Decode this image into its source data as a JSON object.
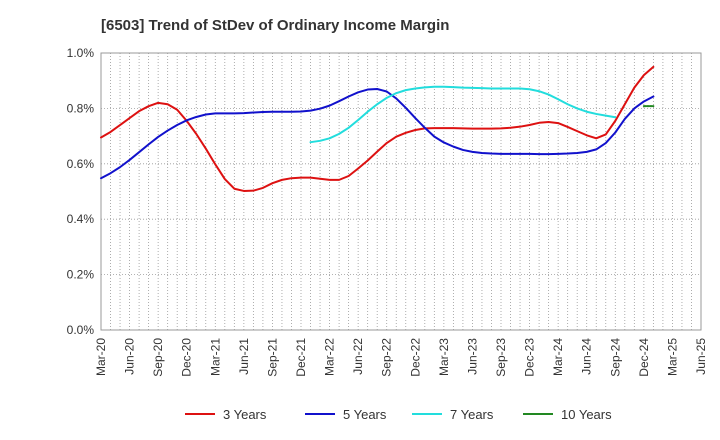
{
  "chart_data": {
    "type": "line",
    "title": "[6503]  Trend of StDev of Ordinary Income Margin",
    "xlabel": "",
    "ylabel": "",
    "ylim": [
      0,
      1.0
    ],
    "yticks": [
      "0.0%",
      "0.2%",
      "0.4%",
      "0.6%",
      "0.8%",
      "1.0%"
    ],
    "xticks": [
      "Mar-20",
      "Jun-20",
      "Sep-20",
      "Dec-20",
      "Mar-21",
      "Jun-21",
      "Sep-21",
      "Dec-21",
      "Mar-22",
      "Jun-22",
      "Sep-22",
      "Dec-22",
      "Mar-23",
      "Jun-23",
      "Sep-23",
      "Dec-23",
      "Mar-24",
      "Jun-24",
      "Sep-24",
      "Dec-24",
      "Mar-25",
      "Jun-25"
    ],
    "grid": true,
    "legend_position": "bottom",
    "series": [
      {
        "name": "3 Years",
        "color": "#dd1111",
        "start_index": 0,
        "values": [
          0.695,
          0.715,
          0.74,
          0.765,
          0.79,
          0.808,
          0.82,
          0.815,
          0.795,
          0.755,
          0.708,
          0.655,
          0.598,
          0.545,
          0.51,
          0.502,
          0.503,
          0.513,
          0.53,
          0.542,
          0.548,
          0.55,
          0.55,
          0.546,
          0.542,
          0.542,
          0.556,
          0.583,
          0.612,
          0.644,
          0.675,
          0.698,
          0.712,
          0.722,
          0.728,
          0.729,
          0.729,
          0.729,
          0.728,
          0.727,
          0.727,
          0.727,
          0.728,
          0.73,
          0.734,
          0.74,
          0.748,
          0.751,
          0.747,
          0.733,
          0.718,
          0.703,
          0.692,
          0.706,
          0.755,
          0.815,
          0.875,
          0.92,
          0.95
        ]
      },
      {
        "name": "5 Years",
        "color": "#1111cc",
        "start_index": 0,
        "values": [
          0.548,
          0.566,
          0.588,
          0.614,
          0.642,
          0.67,
          0.697,
          0.72,
          0.74,
          0.757,
          0.769,
          0.778,
          0.782,
          0.782,
          0.782,
          0.783,
          0.785,
          0.787,
          0.788,
          0.788,
          0.788,
          0.789,
          0.792,
          0.799,
          0.81,
          0.826,
          0.843,
          0.858,
          0.868,
          0.87,
          0.861,
          0.836,
          0.802,
          0.765,
          0.73,
          0.698,
          0.677,
          0.662,
          0.65,
          0.643,
          0.639,
          0.637,
          0.636,
          0.636,
          0.636,
          0.636,
          0.635,
          0.635,
          0.636,
          0.637,
          0.639,
          0.643,
          0.652,
          0.675,
          0.713,
          0.762,
          0.8,
          0.825,
          0.843
        ]
      },
      {
        "name": "7 Years",
        "color": "#22dddd",
        "start_index": 22,
        "values": [
          0.678,
          0.683,
          0.692,
          0.708,
          0.73,
          0.758,
          0.788,
          0.815,
          0.838,
          0.855,
          0.866,
          0.872,
          0.876,
          0.878,
          0.878,
          0.877,
          0.875,
          0.874,
          0.873,
          0.872,
          0.872,
          0.872,
          0.872,
          0.869,
          0.862,
          0.85,
          0.833,
          0.815,
          0.8,
          0.788,
          0.78,
          0.774,
          0.768
        ]
      },
      {
        "name": "10 Years",
        "color": "#228822",
        "start_index": 57,
        "values": [
          0.808,
          0.808
        ]
      }
    ]
  }
}
